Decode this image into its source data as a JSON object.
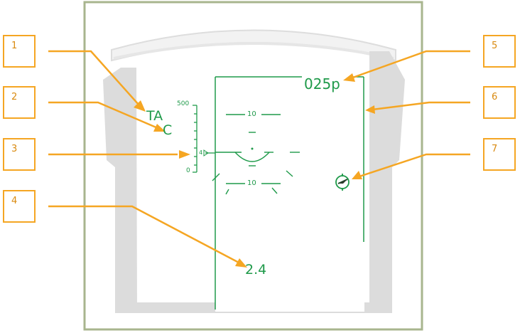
{
  "callouts": [
    "1",
    "2",
    "3",
    "4",
    "5",
    "6",
    "7"
  ],
  "hud": {
    "mode_top": "TA",
    "mode_bottom": "C",
    "range_scale_max": "500",
    "range_scale_min": "0",
    "range_marker": "4",
    "pitch_upper": "10",
    "pitch_lower": "10",
    "range_readout": "2.4",
    "heading_readout": "025p"
  },
  "colors": {
    "frame": "#a8b58e",
    "hud_green": "#1f9a4a",
    "callout_orange": "#f5a623",
    "canopy_gray": "#dcdcdc"
  }
}
